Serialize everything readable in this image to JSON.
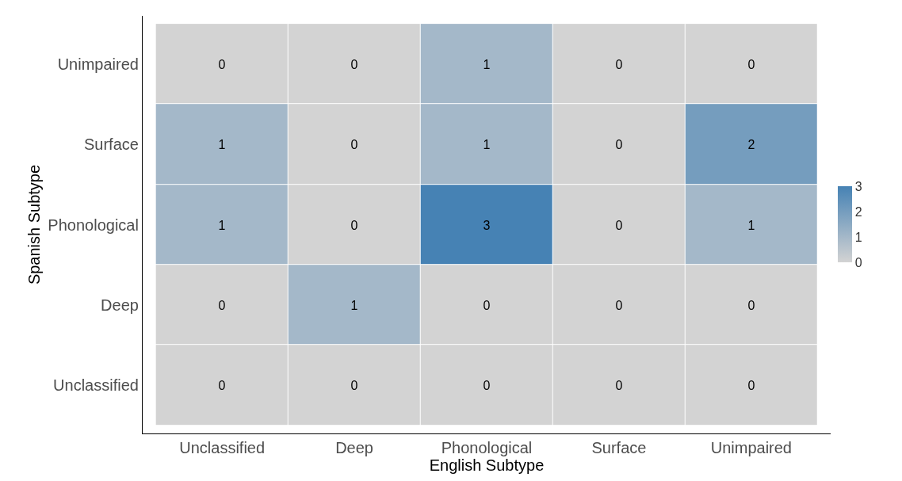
{
  "chart_data": {
    "type": "heatmap",
    "xlabel": "English Subtype",
    "ylabel": "Spanish Subtype",
    "categories": [
      "Unclassified",
      "Deep",
      "Phonological",
      "Surface",
      "Unimpaired"
    ],
    "y_categories": [
      "Unimpaired",
      "Surface",
      "Phonological",
      "Deep",
      "Unclassified"
    ],
    "cells": [
      [
        0,
        0,
        1,
        0,
        0
      ],
      [
        1,
        0,
        1,
        0,
        2
      ],
      [
        1,
        0,
        3,
        0,
        1
      ],
      [
        0,
        1,
        0,
        0,
        0
      ],
      [
        0,
        0,
        0,
        0,
        0
      ]
    ],
    "data_labels": true,
    "colors": [
      "#d3d3d3",
      "#4682b4"
    ],
    "clim": [
      0,
      3
    ],
    "cticks": [
      0,
      1,
      2,
      3
    ],
    "grid": false
  }
}
